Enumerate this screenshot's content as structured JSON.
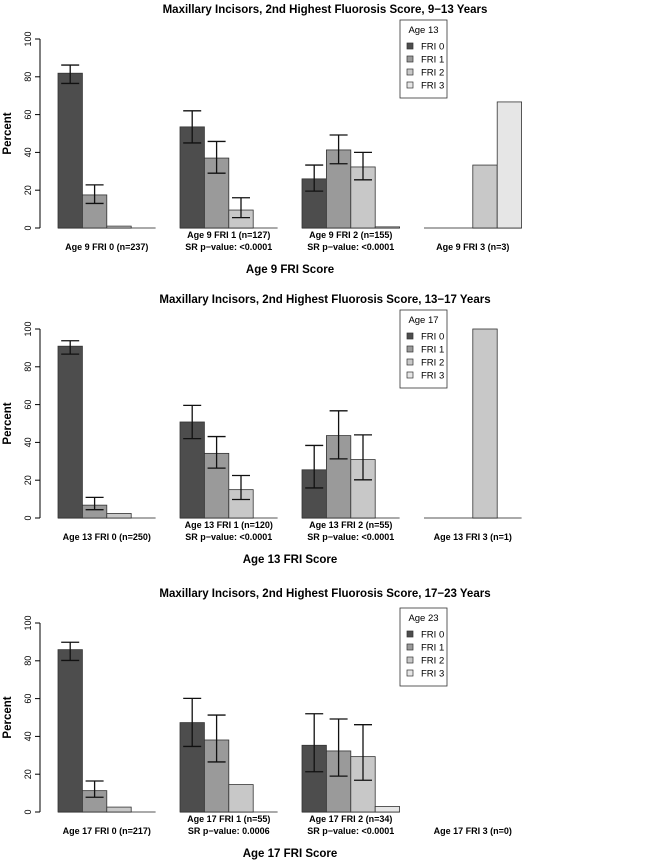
{
  "chart_data": [
    {
      "type": "bar",
      "title": "Maxillary Incisors, 2nd Highest Fluorosis Score, 9−13 Years",
      "xlabel": "Age 9 FRI Score",
      "ylabel": "Percent",
      "ylim": [
        0,
        100
      ],
      "yticks": [
        "0",
        "20",
        "40",
        "60",
        "80",
        "100"
      ],
      "legend_title": "Age 13",
      "legend_position": "top-right",
      "categories": [
        {
          "line1": "",
          "line2": "Age 9 FRI 0 (n=237)"
        },
        {
          "line1": "Age 9 FRI 1 (n=127)",
          "line2": "SR p−value: <0.0001"
        },
        {
          "line1": "Age 9 FRI 2 (n=155)",
          "line2": "SR p−value: <0.0001"
        },
        {
          "line1": "",
          "line2": "Age 9 FRI 3 (n=3)"
        }
      ],
      "series": [
        {
          "name": "FRI 0",
          "color": "#4d4d4d",
          "values": [
            81.9,
            53.5,
            26.0,
            0
          ],
          "ci_lower": [
            76.5,
            45.0,
            19.5,
            null
          ],
          "ci_upper": [
            86.2,
            62.0,
            33.3,
            null
          ]
        },
        {
          "name": "FRI 1",
          "color": "#9a9a9a",
          "values": [
            17.5,
            37.0,
            41.3,
            0
          ],
          "ci_lower": [
            13.0,
            29.0,
            34.0,
            null
          ],
          "ci_upper": [
            22.8,
            45.8,
            49.2,
            null
          ]
        },
        {
          "name": "FRI 2",
          "color": "#c8c8c8",
          "values": [
            1.0,
            9.5,
            32.3,
            33.3
          ],
          "ci_lower": [
            null,
            5.5,
            25.5,
            null
          ],
          "ci_upper": [
            null,
            16.0,
            40.0,
            null
          ]
        },
        {
          "name": "FRI 3",
          "color": "#e6e6e6",
          "values": [
            0,
            0,
            0.6,
            66.7
          ],
          "ci_lower": [
            null,
            null,
            null,
            null
          ],
          "ci_upper": [
            null,
            null,
            null,
            null
          ]
        }
      ]
    },
    {
      "type": "bar",
      "title": "Maxillary Incisors, 2nd Highest Fluorosis Score, 13−17 Years",
      "xlabel": "Age 13 FRI Score",
      "ylabel": "Percent",
      "ylim": [
        0,
        100
      ],
      "yticks": [
        "0",
        "20",
        "40",
        "60",
        "80",
        "100"
      ],
      "legend_title": "Age 17",
      "legend_position": "top-right",
      "categories": [
        {
          "line1": "",
          "line2": "Age 13 FRI 0 (n=250)"
        },
        {
          "line1": "Age 13 FRI 1 (n=120)",
          "line2": "SR p−value: <0.0001"
        },
        {
          "line1": "Age 13 FRI 2 (n=55)",
          "line2": "SR p−value: <0.0001"
        },
        {
          "line1": "",
          "line2": "Age 13 FRI 3 (n=1)"
        }
      ],
      "series": [
        {
          "name": "FRI 0",
          "color": "#4d4d4d",
          "values": [
            90.9,
            50.8,
            25.5,
            0
          ],
          "ci_lower": [
            86.7,
            42.0,
            15.9,
            null
          ],
          "ci_upper": [
            93.8,
            59.6,
            38.4,
            null
          ]
        },
        {
          "name": "FRI 1",
          "color": "#9a9a9a",
          "values": [
            6.8,
            34.2,
            43.6,
            0
          ],
          "ci_lower": [
            4.4,
            26.4,
            31.3,
            null
          ],
          "ci_upper": [
            10.9,
            43.1,
            56.7,
            null
          ]
        },
        {
          "name": "FRI 2",
          "color": "#c8c8c8",
          "values": [
            2.4,
            15.0,
            30.9,
            100
          ],
          "ci_lower": [
            null,
            9.8,
            20.2,
            null
          ],
          "ci_upper": [
            null,
            22.5,
            44.0,
            null
          ]
        },
        {
          "name": "FRI 3",
          "color": "#e6e6e6",
          "values": [
            0,
            0,
            0,
            0
          ],
          "ci_lower": [
            null,
            null,
            null,
            null
          ],
          "ci_upper": [
            null,
            null,
            null,
            null
          ]
        }
      ]
    },
    {
      "type": "bar",
      "title": "Maxillary Incisors, 2nd Highest Fluorosis Score, 17−23 Years",
      "xlabel": "Age 17 FRI Score",
      "ylabel": "Percent",
      "ylim": [
        0,
        100
      ],
      "yticks": [
        "0",
        "20",
        "40",
        "60",
        "80",
        "100"
      ],
      "legend_title": "Age 23",
      "legend_position": "top-right",
      "categories": [
        {
          "line1": "",
          "line2": "Age 17 FRI 0 (n=217)"
        },
        {
          "line1": "Age 17 FRI 1 (n=55)",
          "line2": "SR p−value: 0.0006"
        },
        {
          "line1": "Age 17 FRI 2 (n=34)",
          "line2": "SR p−value: <0.0001"
        },
        {
          "line1": "",
          "line2": "Age 17 FRI 3 (n=0)"
        }
      ],
      "series": [
        {
          "name": "FRI 0",
          "color": "#4d4d4d",
          "values": [
            85.9,
            47.3,
            35.3,
            null
          ],
          "ci_lower": [
            80.2,
            34.7,
            21.3,
            null
          ],
          "ci_upper": [
            89.8,
            60.1,
            52.0,
            null
          ]
        },
        {
          "name": "FRI 1",
          "color": "#9a9a9a",
          "values": [
            11.3,
            38.1,
            32.3,
            null
          ],
          "ci_lower": [
            7.8,
            26.5,
            19.0,
            null
          ],
          "ci_upper": [
            16.4,
            51.3,
            49.2,
            null
          ]
        },
        {
          "name": "FRI 2",
          "color": "#c8c8c8",
          "values": [
            2.6,
            14.5,
            29.3,
            null
          ],
          "ci_lower": [
            null,
            null,
            16.8,
            null
          ],
          "ci_upper": [
            null,
            null,
            46.2,
            null
          ]
        },
        {
          "name": "FRI 3",
          "color": "#e6e6e6",
          "values": [
            0,
            0,
            2.9,
            null
          ],
          "ci_lower": [
            null,
            null,
            null,
            null
          ],
          "ci_upper": [
            null,
            null,
            null,
            null
          ]
        }
      ]
    }
  ]
}
